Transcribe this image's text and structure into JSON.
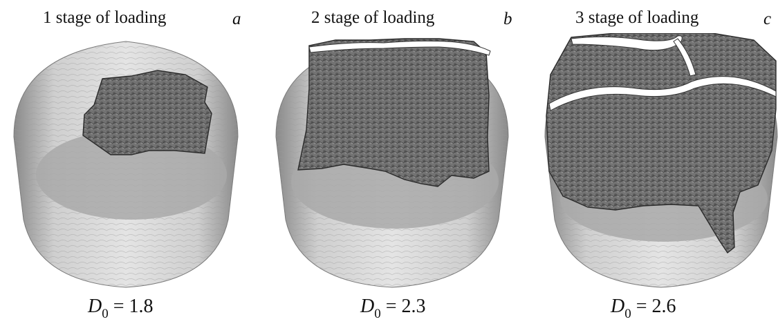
{
  "panels": [
    {
      "title": "1 stage of loading",
      "letter": "a",
      "dim_symbol": "D",
      "dim_sub": "0",
      "dim_value": " = 1.8",
      "crack_fraction": 0.35
    },
    {
      "title": "2 stage of loading",
      "letter": "b",
      "dim_symbol": "D",
      "dim_sub": "0",
      "dim_value": " = 2.3",
      "crack_fraction": 0.65
    },
    {
      "title": "3 stage of loading",
      "letter": "c",
      "dim_symbol": "D",
      "dim_sub": "0",
      "dim_value": " = 2.6",
      "crack_fraction": 0.9
    }
  ],
  "colors": {
    "specimen_body": "#bdbdbd",
    "specimen_edge": "#555555",
    "damage_zone": "#6e6e6e",
    "damage_edge": "#2a2a2a",
    "fracture_gap": "#ffffff"
  }
}
